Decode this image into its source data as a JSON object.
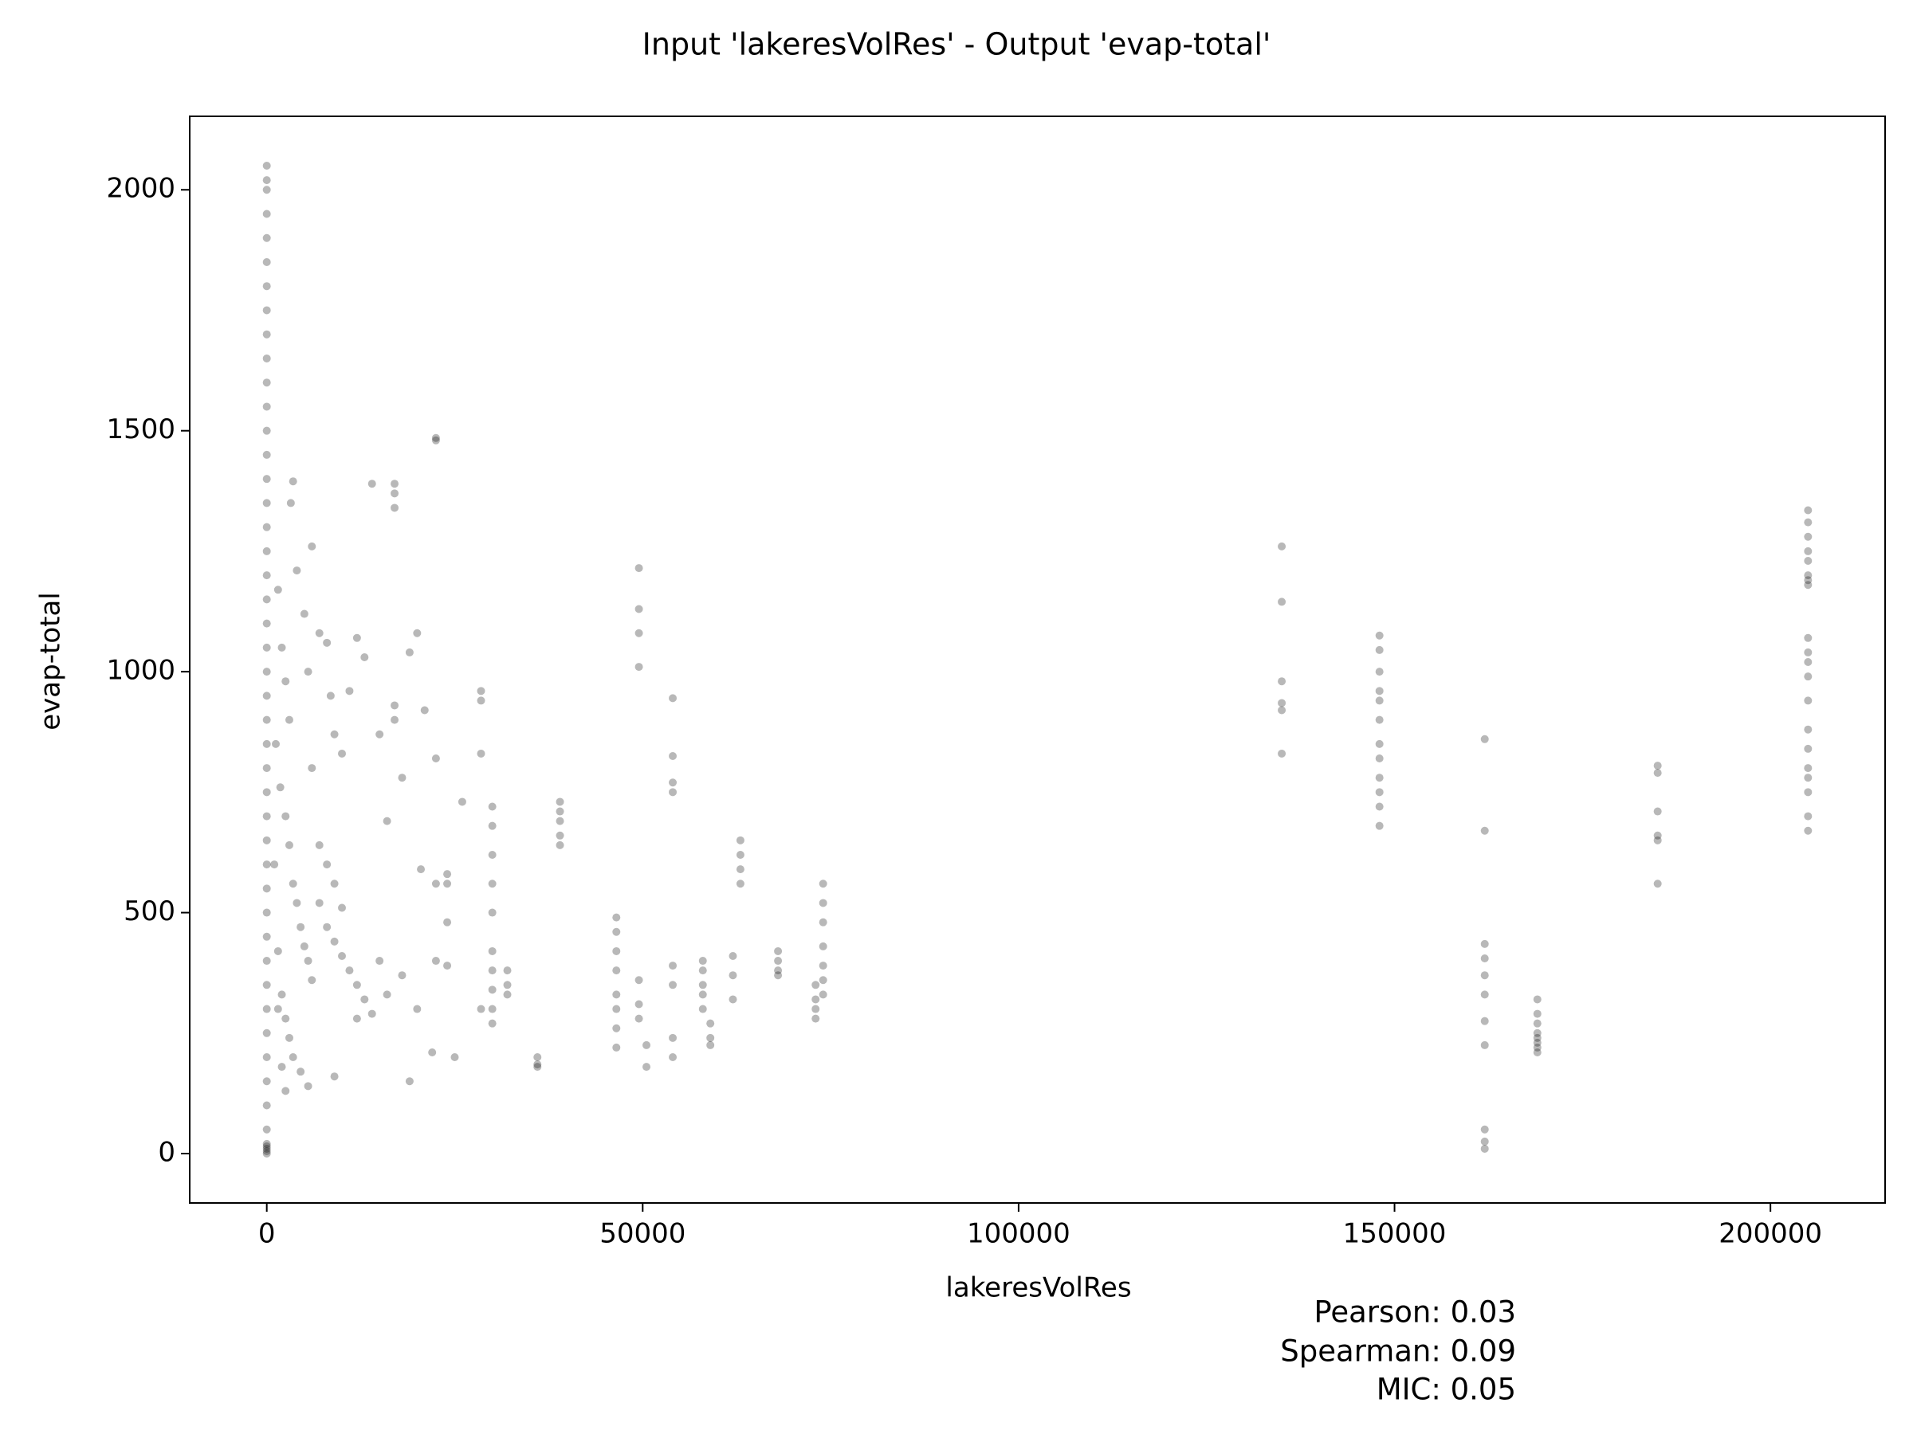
{
  "chart_data": {
    "type": "scatter",
    "title": "Input 'lakeresVolRes' - Output 'evap-total'",
    "xlabel": "lakeresVolRes",
    "ylabel": "evap-total",
    "annotations": [
      "Pearson: 0.03",
      "Spearman: 0.09",
      "MIC: 0.05"
    ],
    "color": "#000000",
    "alpha": 0.28,
    "xlim": [
      -10250,
      215250
    ],
    "ylim": [
      -102.5,
      2152.5
    ],
    "xticks": [
      0,
      50000,
      100000,
      150000,
      200000
    ],
    "yticks": [
      0,
      500,
      1000,
      1500,
      2000
    ],
    "x": [
      0,
      0,
      0,
      0,
      0,
      0,
      0,
      0,
      0,
      0,
      0,
      0,
      0,
      0,
      0,
      0,
      0,
      0,
      0,
      0,
      0,
      0,
      0,
      0,
      0,
      0,
      0,
      0,
      0,
      0,
      0,
      0,
      0,
      0,
      0,
      0,
      0,
      0,
      0,
      0,
      0,
      0,
      0,
      0,
      0,
      0,
      0,
      1500,
      2000,
      2500,
      3000,
      3500,
      3200,
      4000,
      5000,
      6000,
      5500,
      7000,
      8000,
      8500,
      9000,
      10000,
      11000,
      12000,
      13000,
      14000,
      15000,
      16000,
      18000,
      19000,
      20000,
      21000,
      20500,
      1200,
      1800,
      2500,
      3000,
      3500,
      4000,
      4500,
      5000,
      5500,
      6000,
      7000,
      8000,
      9000,
      10000,
      11000,
      12000,
      13000,
      14000,
      15000,
      16000,
      18000,
      20000,
      1500,
      2000,
      2500,
      3000,
      3500,
      4500,
      5500,
      9000,
      12000,
      19000,
      22000,
      25000,
      26000,
      1000,
      1500,
      2000,
      2500,
      7000,
      8000,
      9000,
      10000,
      6000,
      22500,
      22500,
      22500,
      22500,
      22500,
      17000,
      17000,
      17000,
      17000,
      17000,
      24000,
      24000,
      24000,
      24000,
      28500,
      28500,
      28500,
      28500,
      30000,
      30000,
      30000,
      30000,
      30000,
      30000,
      30000,
      30000,
      30000,
      30000,
      32000,
      32000,
      32000,
      36000,
      36000,
      36000,
      39000,
      39000,
      39000,
      39000,
      39000,
      46500,
      46500,
      46500,
      46500,
      46500,
      46500,
      46500,
      46500,
      49500,
      49500,
      49500,
      49500,
      49500,
      49500,
      49500,
      50500,
      50500,
      54000,
      54000,
      54000,
      54000,
      54000,
      54000,
      54000,
      54000,
      58000,
      58000,
      58000,
      58000,
      58000,
      59000,
      59000,
      59000,
      62000,
      62000,
      62000,
      63000,
      63000,
      63000,
      63000,
      68000,
      68000,
      68000,
      68000,
      73000,
      73000,
      73000,
      73000,
      74000,
      74000,
      74000,
      74000,
      74000,
      74000,
      74000,
      135000,
      135000,
      135000,
      135000,
      135000,
      135000,
      148000,
      148000,
      148000,
      148000,
      148000,
      148000,
      148000,
      148000,
      148000,
      148000,
      148000,
      148000,
      162000,
      162000,
      162000,
      162000,
      162000,
      162000,
      162000,
      162000,
      162000,
      162000,
      162000,
      169000,
      169000,
      169000,
      169000,
      169000,
      169000,
      169000,
      169000,
      185000,
      185000,
      185000,
      185000,
      185000,
      185000,
      205000,
      205000,
      205000,
      205000,
      205000,
      205000,
      205000,
      205000,
      205000,
      205000,
      205000,
      205000,
      205000,
      205000,
      205000,
      205000,
      205000,
      205000,
      205000,
      205000
    ],
    "values": [
      0,
      5,
      10,
      15,
      20,
      50,
      100,
      150,
      200,
      250,
      300,
      350,
      400,
      450,
      500,
      550,
      600,
      650,
      700,
      750,
      800,
      850,
      900,
      950,
      1000,
      1050,
      1100,
      1150,
      1200,
      1250,
      1300,
      1350,
      1400,
      1450,
      1500,
      1550,
      1600,
      1650,
      1700,
      1750,
      1800,
      1850,
      1900,
      1950,
      2000,
      2020,
      2050,
      1170,
      1050,
      980,
      900,
      1395,
      1350,
      1210,
      1120,
      1260,
      1000,
      1080,
      1060,
      950,
      870,
      830,
      960,
      1070,
      1030,
      1390,
      870,
      690,
      780,
      1040,
      1080,
      920,
      590,
      850,
      760,
      700,
      640,
      560,
      520,
      470,
      430,
      400,
      360,
      520,
      470,
      440,
      410,
      380,
      350,
      320,
      290,
      400,
      330,
      370,
      300,
      420,
      330,
      280,
      240,
      200,
      170,
      140,
      160,
      280,
      150,
      210,
      200,
      730,
      600,
      300,
      180,
      130,
      640,
      600,
      560,
      510,
      800,
      1480,
      1485,
      820,
      560,
      400,
      1390,
      1370,
      1340,
      930,
      900,
      580,
      560,
      480,
      390,
      960,
      940,
      830,
      300,
      720,
      680,
      620,
      560,
      500,
      420,
      380,
      340,
      300,
      270,
      380,
      350,
      330,
      200,
      185,
      180,
      730,
      710,
      690,
      660,
      640,
      490,
      460,
      420,
      380,
      330,
      300,
      260,
      220,
      1215,
      1130,
      1080,
      1010,
      360,
      310,
      280,
      225,
      180,
      945,
      825,
      770,
      750,
      390,
      350,
      240,
      200,
      400,
      380,
      350,
      330,
      300,
      270,
      240,
      225,
      410,
      370,
      320,
      650,
      620,
      590,
      560,
      420,
      400,
      380,
      370,
      350,
      320,
      300,
      280,
      560,
      520,
      480,
      430,
      390,
      360,
      330,
      1260,
      1145,
      980,
      935,
      920,
      830,
      1075,
      1045,
      1000,
      960,
      940,
      900,
      850,
      820,
      780,
      750,
      720,
      680,
      860,
      670,
      435,
      405,
      370,
      330,
      275,
      225,
      50,
      25,
      10,
      320,
      290,
      270,
      250,
      240,
      230,
      220,
      210,
      805,
      790,
      710,
      660,
      650,
      560,
      1335,
      1310,
      1280,
      1250,
      1230,
      1200,
      1190,
      1180,
      1070,
      1040,
      1020,
      990,
      940,
      880,
      840,
      800,
      780,
      750,
      700,
      670
    ]
  }
}
